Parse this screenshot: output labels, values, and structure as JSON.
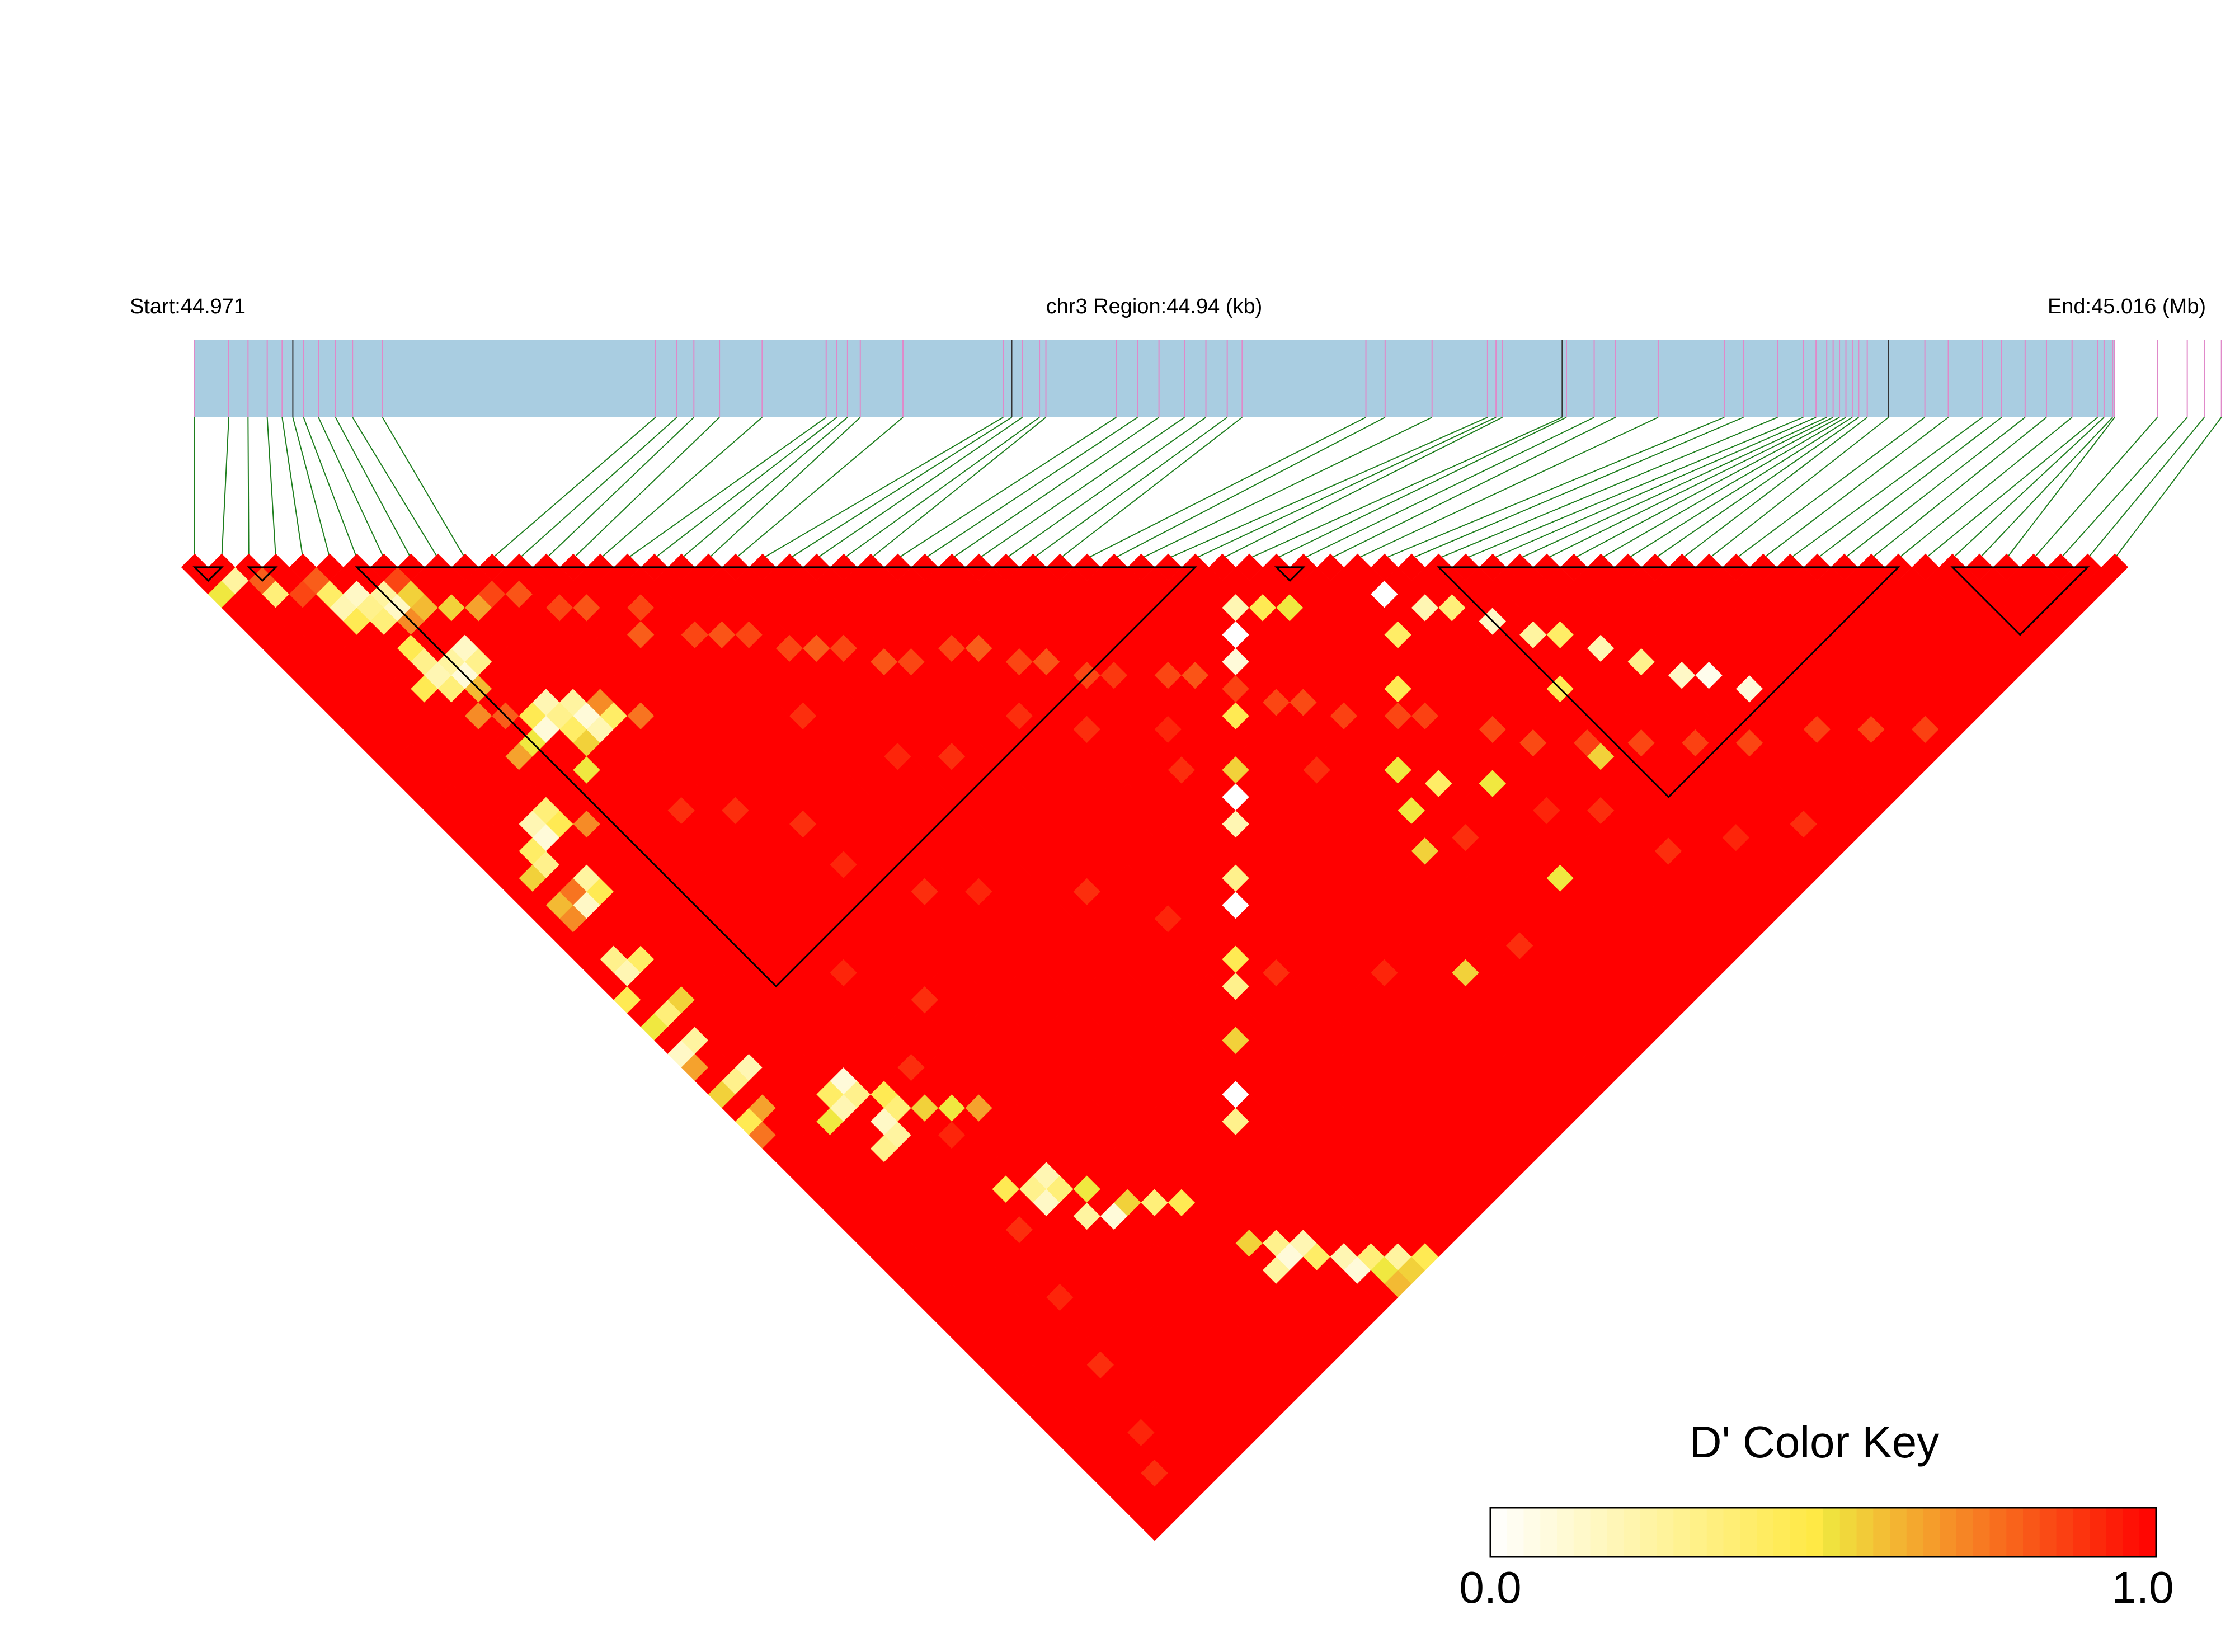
{
  "chart_data": {
    "type": "heatmap",
    "subtype": "linkage-disequilibrium-triangle",
    "metric": "D'",
    "header": {
      "start_label": "Start:44.971",
      "region_label": "chr3 Region:44.94 (kb)",
      "end_label": "End:45.016 (Mb)"
    },
    "region": {
      "chromosome": "chr3",
      "start_mb": 44.971,
      "end_mb": 45.016,
      "length_kb": 44.94
    },
    "snp_count": 72,
    "snp_positions_mb": [
      44.971,
      44.9718,
      44.97225,
      44.9727,
      44.97305,
      44.9733,
      44.97355,
      44.9739,
      44.9743,
      44.9747,
      44.9754,
      44.9818,
      44.9823,
      44.9827,
      44.9833,
      44.9843,
      44.9858,
      44.98605,
      44.9863,
      44.9866,
      44.9876,
      44.98995,
      44.99015,
      44.9904,
      44.9908,
      44.99095,
      44.9926,
      44.9931,
      44.9936,
      44.9942,
      44.9947,
      44.9952,
      44.99555,
      44.99845,
      44.9989,
      45.0,
      45.0013,
      45.0015,
      45.00165,
      45.00305,
      45.00315,
      45.0038,
      45.0043,
      45.0053,
      45.00685,
      45.0073,
      45.0081,
      45.0087,
      45.009,
      45.00925,
      45.0094,
      45.00955,
      45.0097,
      45.00985,
      45.01,
      45.0102,
      45.0107,
      45.01155,
      45.0121,
      45.0129,
      45.01335,
      45.0139,
      45.0144,
      45.015,
      45.0156,
      45.01575,
      45.01595,
      45.017,
      45.0177,
      45.0181,
      45.0185,
      45.016
    ],
    "haplotype_blocks": [
      {
        "first_snp": 1,
        "last_snp": 2
      },
      {
        "first_snp": 3,
        "last_snp": 4
      },
      {
        "first_snp": 7,
        "last_snp": 38
      },
      {
        "first_snp": 41,
        "last_snp": 42
      },
      {
        "first_snp": 47,
        "last_snp": 64
      },
      {
        "first_snp": 66,
        "last_snp": 71
      }
    ],
    "ld_values_note": "Default D' = 1.0 for all SNP pairs; listed entries override it.",
    "default_d_prime": 1.0,
    "ld_low_values": [
      [
        1,
        3,
        0.5
      ],
      [
        2,
        3,
        0.25
      ],
      [
        3,
        5,
        0.35
      ],
      [
        5,
        7,
        0.4
      ],
      [
        5,
        8,
        0.2
      ],
      [
        6,
        8,
        0.15
      ],
      [
        6,
        9,
        0.3
      ],
      [
        7,
        9,
        0.25
      ],
      [
        7,
        10,
        0.15
      ],
      [
        6,
        10,
        0.35
      ],
      [
        5,
        9,
        0.45
      ],
      [
        8,
        10,
        0.55
      ],
      [
        8,
        11,
        0.6
      ],
      [
        7,
        11,
        0.7
      ],
      [
        9,
        12,
        0.55
      ],
      [
        10,
        13,
        0.65
      ],
      [
        6,
        12,
        0.45
      ],
      [
        6,
        13,
        0.3
      ],
      [
        6,
        14,
        0.2
      ],
      [
        7,
        14,
        0.25
      ],
      [
        7,
        15,
        0.1
      ],
      [
        6,
        15,
        0.35
      ],
      [
        5,
        14,
        0.45
      ],
      [
        8,
        14,
        0.15
      ],
      [
        8,
        15,
        0.3
      ],
      [
        7,
        16,
        0.6
      ],
      [
        6,
        17,
        0.7
      ],
      [
        7,
        18,
        0.8
      ],
      [
        8,
        19,
        0.45
      ],
      [
        9,
        19,
        0.2
      ],
      [
        9,
        20,
        0.3
      ],
      [
        8,
        20,
        0.1
      ],
      [
        10,
        20,
        0.25
      ],
      [
        10,
        21,
        0.1
      ],
      [
        9,
        21,
        0.4
      ],
      [
        7,
        20,
        0.5
      ],
      [
        6,
        20,
        0.65
      ],
      [
        11,
        21,
        0.7
      ],
      [
        11,
        22,
        0.4
      ],
      [
        10,
        22,
        0.2
      ],
      [
        9,
        22,
        0.55
      ],
      [
        12,
        23,
        0.75
      ],
      [
        8,
        23,
        0.5
      ],
      [
        5,
        23,
        0.35
      ],
      [
        4,
        23,
        0.2
      ],
      [
        4,
        24,
        0.1
      ],
      [
        3,
        24,
        0.4
      ],
      [
        5,
        24,
        0.45
      ],
      [
        3,
        25,
        0.3
      ],
      [
        2,
        25,
        0.55
      ],
      [
        6,
        25,
        0.7
      ],
      [
        2,
        27,
        0.6
      ],
      [
        3,
        27,
        0.75
      ],
      [
        4,
        27,
        0.25
      ],
      [
        3,
        28,
        0.15
      ],
      [
        4,
        28,
        0.45
      ],
      [
        2,
        28,
        0.7
      ],
      [
        2,
        31,
        0.3
      ],
      [
        2,
        32,
        0.2
      ],
      [
        3,
        32,
        0.4
      ],
      [
        1,
        33,
        0.45
      ],
      [
        1,
        35,
        0.5
      ],
      [
        2,
        35,
        0.35
      ],
      [
        3,
        35,
        0.55
      ],
      [
        1,
        37,
        0.15
      ],
      [
        2,
        37,
        0.25
      ],
      [
        1,
        38,
        0.65
      ],
      [
        1,
        40,
        0.55
      ],
      [
        2,
        40,
        0.3
      ],
      [
        3,
        40,
        0.2
      ],
      [
        1,
        42,
        0.45
      ],
      [
        2,
        42,
        0.65
      ],
      [
        1,
        43,
        0.75
      ],
      [
        5,
        44,
        0.4
      ],
      [
        6,
        44,
        0.1
      ],
      [
        5,
        45,
        0.2
      ],
      [
        6,
        45,
        0.3
      ],
      [
        4,
        45,
        0.5
      ],
      [
        7,
        46,
        0.45
      ],
      [
        7,
        47,
        0.35
      ],
      [
        6,
        47,
        0.15
      ],
      [
        8,
        48,
        0.55
      ],
      [
        6,
        48,
        0.25
      ],
      [
        5,
        48,
        0.3
      ],
      [
        9,
        49,
        0.5
      ],
      [
        10,
        50,
        0.65
      ],
      [
        8,
        54,
        0.45
      ],
      [
        9,
        55,
        0.3
      ],
      [
        10,
        55,
        0.2
      ],
      [
        10,
        56,
        0.35
      ],
      [
        9,
        56,
        0.15
      ],
      [
        11,
        57,
        0.5
      ],
      [
        10,
        58,
        0.25
      ],
      [
        12,
        59,
        0.55
      ],
      [
        11,
        59,
        0.1
      ],
      [
        13,
        60,
        0.35
      ],
      [
        14,
        61,
        0.45
      ],
      [
        15,
        65,
        0.55
      ],
      [
        16,
        66,
        0.3
      ],
      [
        16,
        67,
        0.1
      ],
      [
        17,
        67,
        0.2
      ],
      [
        15,
        67,
        0.25
      ],
      [
        17,
        68,
        0.4
      ],
      [
        18,
        69,
        0.2
      ],
      [
        18,
        70,
        0.1
      ],
      [
        19,
        70,
        0.35
      ],
      [
        19,
        71,
        0.5
      ],
      [
        20,
        71,
        0.25
      ],
      [
        21,
        72,
        0.45
      ],
      [
        20,
        72,
        0.55
      ],
      [
        19,
        72,
        0.6
      ],
      [
        38,
        41,
        0.2
      ],
      [
        39,
        42,
        0.45
      ],
      [
        40,
        43,
        0.5
      ],
      [
        37,
        42,
        0.0
      ],
      [
        36,
        43,
        0.1
      ],
      [
        35,
        44,
        0.3
      ],
      [
        34,
        45,
        0.45
      ],
      [
        32,
        47,
        0.55
      ],
      [
        31,
        48,
        0.0
      ],
      [
        30,
        49,
        0.2
      ],
      [
        28,
        51,
        0.3
      ],
      [
        27,
        52,
        0.0
      ],
      [
        25,
        54,
        0.45
      ],
      [
        24,
        55,
        0.3
      ],
      [
        22,
        57,
        0.55
      ],
      [
        20,
        59,
        0.0
      ],
      [
        19,
        60,
        0.3
      ],
      [
        44,
        46,
        0.0
      ],
      [
        45,
        48,
        0.2
      ],
      [
        46,
        49,
        0.35
      ],
      [
        47,
        51,
        0.15
      ],
      [
        48,
        53,
        0.25
      ],
      [
        49,
        54,
        0.4
      ],
      [
        50,
        56,
        0.2
      ],
      [
        51,
        58,
        0.3
      ],
      [
        52,
        60,
        0.15
      ],
      [
        53,
        61,
        0.05
      ],
      [
        54,
        63,
        0.1
      ],
      [
        47,
        56,
        0.45
      ],
      [
        46,
        60,
        0.55
      ],
      [
        38,
        53,
        0.5
      ],
      [
        39,
        55,
        0.4
      ],
      [
        37,
        55,
        0.5
      ],
      [
        36,
        57,
        0.55
      ],
      [
        41,
        50,
        0.45
      ],
      [
        43,
        48,
        0.4
      ],
      [
        41,
        57,
        0.5
      ],
      [
        33,
        63,
        0.55
      ],
      [
        40,
        63,
        0.5
      ]
    ],
    "ld_moderate_values": [
      [
        3,
        4,
        0.8
      ],
      [
        4,
        6,
        0.85
      ],
      [
        5,
        6,
        0.8
      ],
      [
        8,
        9,
        0.85
      ],
      [
        11,
        13,
        0.85
      ],
      [
        12,
        14,
        0.82
      ],
      [
        13,
        16,
        0.85
      ],
      [
        14,
        17,
        0.82
      ],
      [
        16,
        19,
        0.85
      ],
      [
        15,
        20,
        0.8
      ],
      [
        17,
        22,
        0.85
      ],
      [
        18,
        23,
        0.82
      ],
      [
        19,
        24,
        0.85
      ],
      [
        20,
        26,
        0.85
      ],
      [
        21,
        27,
        0.8
      ],
      [
        22,
        28,
        0.85
      ],
      [
        23,
        30,
        0.82
      ],
      [
        24,
        31,
        0.85
      ],
      [
        26,
        32,
        0.85
      ],
      [
        27,
        33,
        0.8
      ],
      [
        28,
        35,
        0.85
      ],
      [
        29,
        36,
        0.82
      ],
      [
        30,
        38,
        0.85
      ],
      [
        31,
        39,
        0.88
      ],
      [
        33,
        41,
        0.85
      ],
      [
        34,
        42,
        0.82
      ],
      [
        35,
        44,
        0.86
      ],
      [
        36,
        46,
        0.85
      ],
      [
        37,
        47,
        0.84
      ],
      [
        38,
        49,
        0.86
      ],
      [
        40,
        51,
        0.85
      ],
      [
        41,
        52,
        0.86
      ],
      [
        43,
        55,
        0.85
      ],
      [
        44,
        57,
        0.84
      ],
      [
        46,
        59,
        0.86
      ],
      [
        48,
        61,
        0.85
      ],
      [
        50,
        63,
        0.86
      ],
      [
        52,
        65,
        0.85
      ],
      [
        55,
        67,
        0.86
      ],
      [
        57,
        69,
        0.85
      ],
      [
        59,
        71,
        0.86
      ],
      [
        10,
        28,
        0.9
      ],
      [
        12,
        30,
        0.9
      ],
      [
        14,
        33,
        0.9
      ],
      [
        18,
        29,
        0.9
      ],
      [
        20,
        34,
        0.92
      ],
      [
        22,
        36,
        0.9
      ],
      [
        26,
        37,
        0.9
      ],
      [
        28,
        40,
        0.9
      ],
      [
        30,
        45,
        0.9
      ],
      [
        31,
        43,
        0.92
      ],
      [
        35,
        50,
        0.9
      ],
      [
        38,
        58,
        0.9
      ],
      [
        42,
        60,
        0.92
      ],
      [
        44,
        62,
        0.9
      ],
      [
        45,
        66,
        0.9
      ],
      [
        48,
        68,
        0.92
      ],
      [
        51,
        70,
        0.9
      ],
      [
        36,
        64,
        0.9
      ],
      [
        30,
        60,
        0.92
      ],
      [
        26,
        56,
        0.9
      ],
      [
        24,
        50,
        0.92
      ],
      [
        22,
        46,
        0.9
      ],
      [
        18,
        42,
        0.92
      ],
      [
        16,
        40,
        0.9
      ],
      [
        14,
        36,
        0.92
      ],
      [
        12,
        44,
        0.9
      ],
      [
        10,
        40,
        0.92
      ],
      [
        9,
        46,
        0.9
      ],
      [
        8,
        50,
        0.92
      ],
      [
        7,
        56,
        0.9
      ],
      [
        6,
        60,
        0.92
      ],
      [
        5,
        64,
        0.9
      ],
      [
        4,
        68,
        0.92
      ],
      [
        3,
        70,
        0.9
      ]
    ],
    "color_key": {
      "title": "D' Color Key",
      "min_label": "0.0",
      "max_label": "1.0",
      "min": 0.0,
      "max": 1.0,
      "steps": 40
    },
    "colors": {
      "gene_track_fill": "#a9cde1",
      "snp_marker_tick": "#e089c9",
      "dark_tick": "#333333",
      "connector_line": "#1e7e1e",
      "high_ld": "#ff0000",
      "mid_ld": "#f0e040",
      "low_ld": "#ffffff",
      "block_outline": "#000000"
    }
  }
}
